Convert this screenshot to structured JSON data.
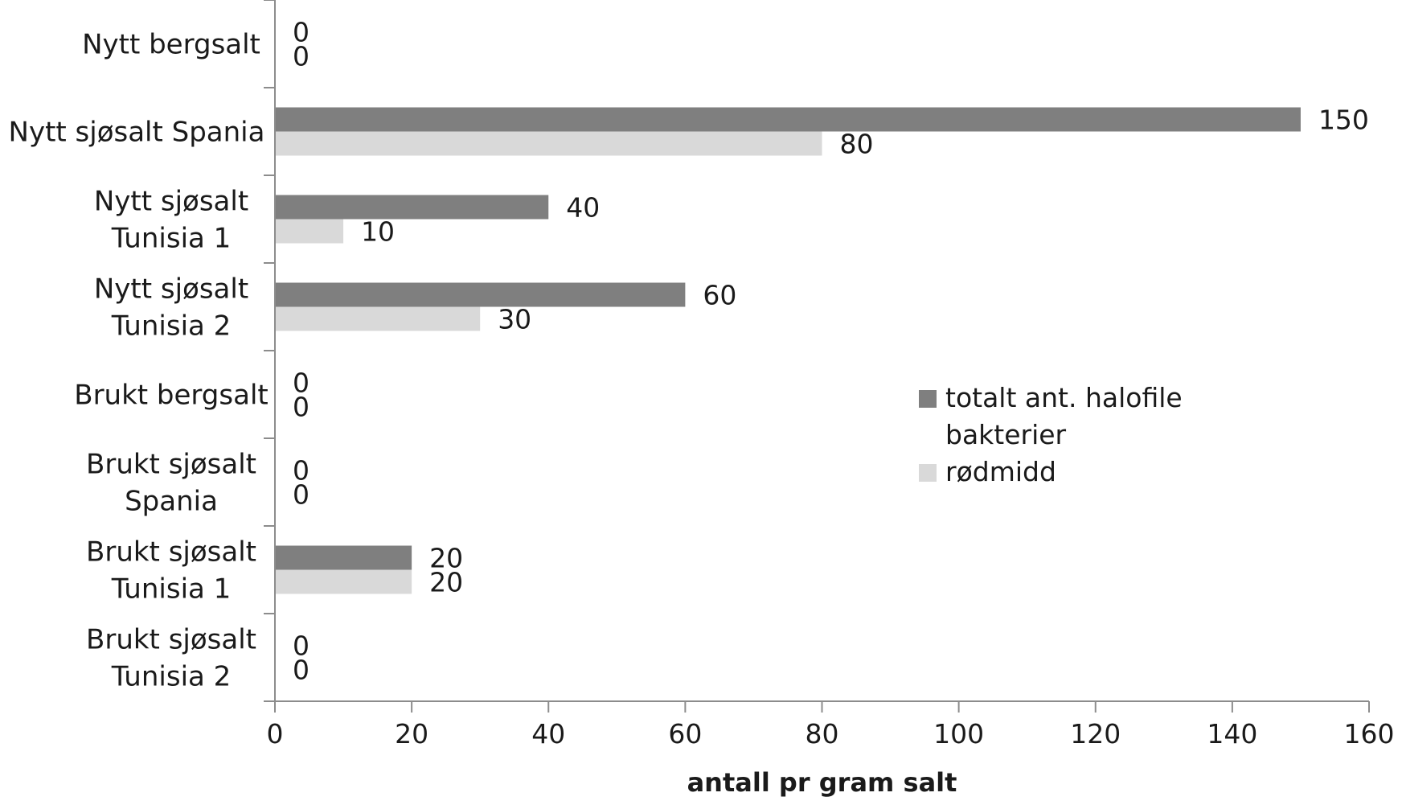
{
  "chart_data": {
    "type": "bar",
    "orientation": "horizontal",
    "categories": [
      [
        "Nytt bergsalt"
      ],
      [
        "Nytt sjøsalt Spania"
      ],
      [
        "Nytt sjøsalt",
        "Tunisia 1"
      ],
      [
        "Nytt sjøsalt",
        "Tunisia 2"
      ],
      [
        "Brukt bergsalt"
      ],
      [
        "Brukt sjøsalt",
        "Spania"
      ],
      [
        "Brukt sjøsalt",
        "Tunisia 1"
      ],
      [
        "Brukt sjøsalt",
        "Tunisia 2"
      ]
    ],
    "series": [
      {
        "name": "totalt ant. halofile bakterier",
        "legend_lines": [
          "totalt ant. halofile",
          "bakterier"
        ],
        "color": "#7f7f7f",
        "values": [
          0,
          150,
          40,
          60,
          0,
          0,
          20,
          0
        ]
      },
      {
        "name": "rødmidd",
        "legend_lines": [
          "rødmidd"
        ],
        "color": "#d9d9d9",
        "values": [
          0,
          80,
          10,
          30,
          0,
          0,
          20,
          0
        ]
      }
    ],
    "xlabel": "antall pr gram salt",
    "xlim": [
      0,
      160
    ],
    "xticks": [
      0,
      20,
      40,
      60,
      80,
      100,
      120,
      140,
      160
    ],
    "data_labels": true,
    "grid": false,
    "legend_position": "right"
  }
}
